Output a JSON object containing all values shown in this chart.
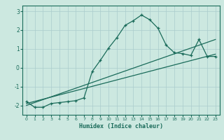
{
  "xlabel": "Humidex (Indice chaleur)",
  "ylabel": "",
  "bg_color": "#cce8e0",
  "grid_color": "#aacccc",
  "line_color": "#1a6b5a",
  "xlim": [
    -0.5,
    23.5
  ],
  "ylim": [
    -2.5,
    3.3
  ],
  "yticks": [
    -2,
    -1,
    0,
    1,
    2,
    3
  ],
  "xticks": [
    0,
    1,
    2,
    3,
    4,
    5,
    6,
    7,
    8,
    9,
    10,
    11,
    12,
    13,
    14,
    15,
    16,
    17,
    18,
    19,
    20,
    21,
    22,
    23
  ],
  "main_x": [
    0,
    1,
    2,
    3,
    4,
    5,
    6,
    7,
    8,
    9,
    10,
    11,
    12,
    13,
    14,
    15,
    16,
    17,
    18,
    19,
    20,
    21,
    22,
    23
  ],
  "main_y": [
    -1.8,
    -2.1,
    -2.1,
    -1.9,
    -1.85,
    -1.8,
    -1.75,
    -1.6,
    -0.2,
    0.4,
    1.05,
    1.6,
    2.25,
    2.5,
    2.8,
    2.55,
    2.1,
    1.2,
    0.8,
    0.75,
    0.65,
    1.5,
    0.6,
    0.6
  ],
  "line2_x": [
    0,
    23
  ],
  "line2_y": [
    -2.0,
    1.5
  ],
  "line3_x": [
    0,
    23
  ],
  "line3_y": [
    -1.9,
    0.72
  ]
}
